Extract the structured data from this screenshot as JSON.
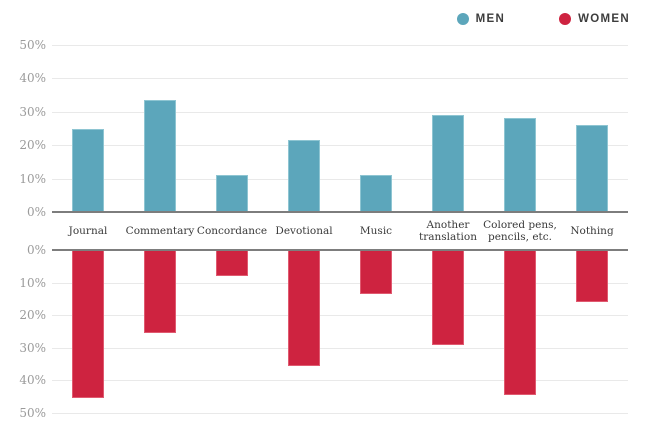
{
  "legend": {
    "men_label": "MEN",
    "women_label": "WOMEN"
  },
  "colors": {
    "men": "#5ca6bb",
    "men_border": "#8ec5d2",
    "women": "#ce2340",
    "women_border": "#e05a70",
    "grid": "#e9e9e9",
    "baseline": "#7d7d7d",
    "tick_text": "#9b9b9b",
    "category_text": "#3a3a3a",
    "legend_text": "#3d3d3d",
    "background": "#ffffff"
  },
  "chart_data": {
    "type": "bar",
    "orientation": "diverging-vertical",
    "title": "",
    "xlabel": "",
    "ylabel": "",
    "grid": true,
    "legend_position": "top-right",
    "axis_ticks": [
      "0%",
      "10%",
      "20%",
      "30%",
      "40%",
      "50%"
    ],
    "ylim_up": [
      0,
      50
    ],
    "ylim_down": [
      0,
      50
    ],
    "categories": [
      "Journal",
      "Commentary",
      "Concordance",
      "Devotional",
      "Music",
      "Another translation",
      "Colored pens, pencils, etc.",
      "Nothing"
    ],
    "category_label_lines": [
      [
        "Journal"
      ],
      [
        "Commentary"
      ],
      [
        "Concordance"
      ],
      [
        "Devotional"
      ],
      [
        "Music"
      ],
      [
        "Another",
        "translation"
      ],
      [
        "Colored pens,",
        "pencils, etc."
      ],
      [
        "Nothing"
      ]
    ],
    "series": [
      {
        "name": "MEN",
        "direction": "up",
        "color": "#5ca6bb",
        "values": [
          25,
          33.5,
          11,
          21.5,
          11,
          29,
          28,
          26
        ]
      },
      {
        "name": "WOMEN",
        "direction": "down",
        "color": "#ce2340",
        "values": [
          45.5,
          25.5,
          8,
          35.5,
          13.5,
          29,
          44.5,
          16
        ]
      }
    ]
  }
}
